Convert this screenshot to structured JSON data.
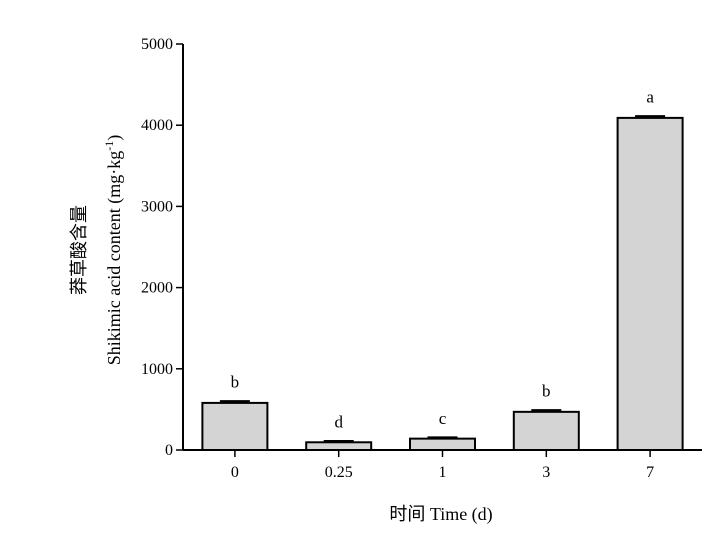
{
  "chart_data": {
    "type": "bar",
    "categories": [
      "0",
      "0.25",
      "1",
      "3",
      "7"
    ],
    "values": [
      580,
      95,
      140,
      470,
      4090
    ],
    "errors": [
      15,
      10,
      10,
      15,
      15
    ],
    "significance": [
      "b",
      "d",
      "c",
      "b",
      "a"
    ],
    "xlabel": "时间 Time (d)",
    "ylabel_cn": "莽草酸含量",
    "ylabel_en": "Shikimic acid content (mg·kg",
    "ylabel_sup": "-1",
    "ylabel_close": ")",
    "ylim": [
      0,
      5000
    ],
    "yticks": [
      0,
      1000,
      2000,
      3000,
      4000,
      5000
    ],
    "bar_color": "#d4d4d4",
    "grid": false,
    "legend": "none"
  }
}
